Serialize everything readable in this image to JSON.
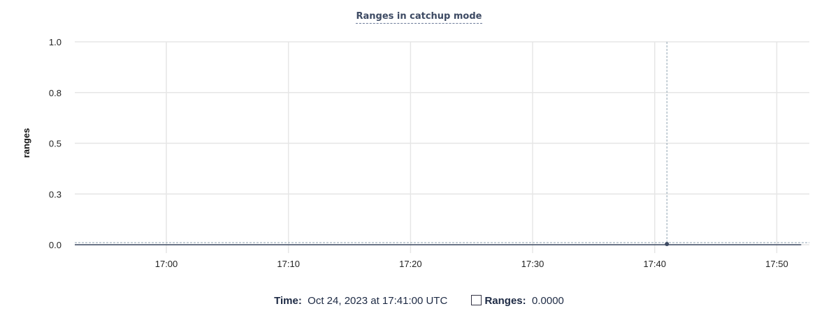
{
  "chart_data": {
    "type": "line",
    "title": "Ranges in catchup mode",
    "xlabel": "",
    "ylabel": "ranges",
    "x_ticks": [
      "17:00",
      "17:10",
      "17:20",
      "17:30",
      "17:40",
      "17:50"
    ],
    "x_tick_minutes": [
      1020,
      1030,
      1040,
      1050,
      1060,
      1070
    ],
    "x_range": [
      "16:52:30",
      "17:52:40"
    ],
    "y_ticks": [
      {
        "value": 0.0,
        "label": "0.0"
      },
      {
        "value": 0.25,
        "label": "0.3"
      },
      {
        "value": 0.5,
        "label": "0.5"
      },
      {
        "value": 0.75,
        "label": "0.8"
      },
      {
        "value": 1.0,
        "label": "1.0"
      }
    ],
    "ylim": [
      0,
      1
    ],
    "grid": true,
    "series": [
      {
        "name": "Ranges",
        "color": "#3d4a63",
        "x": [
          "16:52:30",
          "17:52:00"
        ],
        "values": [
          0,
          0
        ]
      }
    ],
    "hover": {
      "x": "17:41:00",
      "value": 0
    }
  },
  "legend": {
    "time_label": "Time:",
    "time_value": "Oct 24, 2023 at 17:41:00 UTC",
    "series_label": "Ranges:",
    "series_value": "0.0000"
  }
}
